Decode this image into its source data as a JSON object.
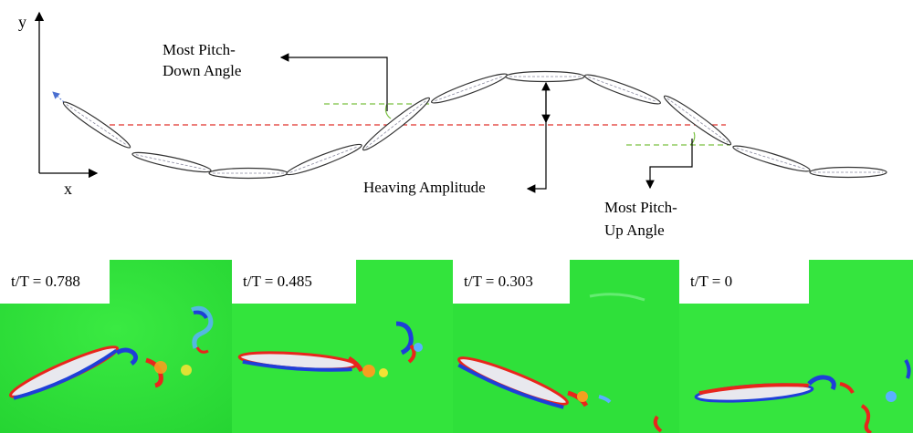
{
  "diagram": {
    "axis_y": "y",
    "axis_x": "x",
    "label_pitch_down_1": "Most Pitch-",
    "label_pitch_down_2": "Down Angle",
    "label_heaving": "Heaving Amplitude",
    "label_pitch_up_1": "Most Pitch-",
    "label_pitch_up_2": "Up Angle",
    "colors": {
      "midline": "#e0302a",
      "angle_ref": "#7ac142",
      "foil_outline": "#333333",
      "foil_chord": "#8a8aa0"
    }
  },
  "panels": [
    {
      "label": "t/T = 0.788"
    },
    {
      "label": "t/T = 0.485"
    },
    {
      "label": "t/T = 0.303"
    },
    {
      "label": "t/T = 0"
    }
  ],
  "colormap": {
    "background": "#2fe33a",
    "positive": "#e8261c",
    "negative": "#1e3fd8",
    "foil": "#e8e8ee"
  }
}
